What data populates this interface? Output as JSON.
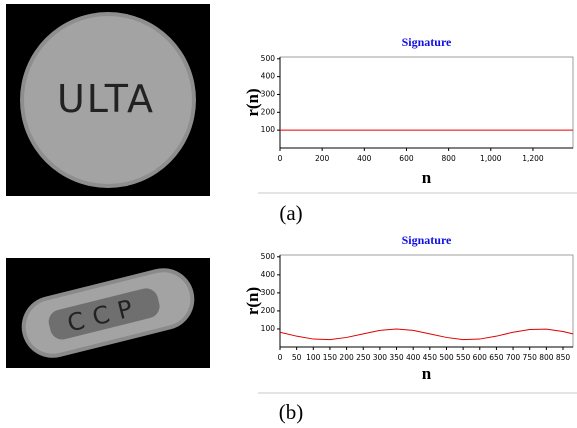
{
  "chart_data": [
    {
      "type": "line",
      "title": "Signature",
      "x_label": "n",
      "y_label": "r(n)",
      "color": "#e00000",
      "x": [
        0,
        100,
        200,
        300,
        400,
        500,
        600,
        700,
        800,
        900,
        1000,
        1100,
        1200,
        1300,
        1390
      ],
      "values": [
        100,
        100,
        100,
        100,
        100,
        100,
        100,
        100,
        100,
        100,
        100,
        100,
        100,
        100,
        100
      ],
      "xlim": [
        0,
        1390
      ],
      "xticks": [
        0,
        200,
        400,
        600,
        800,
        {
          "value": 1000,
          "label": "1,000"
        },
        {
          "value": 1200,
          "label": "1,200"
        }
      ],
      "ylim": [
        0,
        510
      ],
      "yticks": [
        100,
        200,
        300,
        400,
        500
      ]
    },
    {
      "type": "line",
      "title": "Signature",
      "x_label": "n",
      "y_label": "r(n)",
      "color": "#e00000",
      "x": [
        0,
        50,
        100,
        150,
        200,
        250,
        300,
        350,
        400,
        450,
        500,
        550,
        600,
        650,
        700,
        750,
        800,
        850,
        880
      ],
      "values": [
        82,
        60,
        44,
        41,
        53,
        73,
        92,
        100,
        92,
        73,
        53,
        41,
        44,
        60,
        82,
        97,
        99,
        86,
        73
      ],
      "xlim": [
        0,
        880
      ],
      "xticks": [
        0,
        50,
        100,
        150,
        200,
        250,
        300,
        350,
        400,
        450,
        500,
        550,
        600,
        650,
        700,
        750,
        800,
        850
      ],
      "ylim": [
        0,
        510
      ],
      "yticks": [
        100,
        200,
        300,
        400,
        500
      ]
    }
  ],
  "panels": [
    {
      "caption": "(a)",
      "imprint": "ULTA"
    },
    {
      "caption": "(b)",
      "imprint": "CCP"
    }
  ]
}
